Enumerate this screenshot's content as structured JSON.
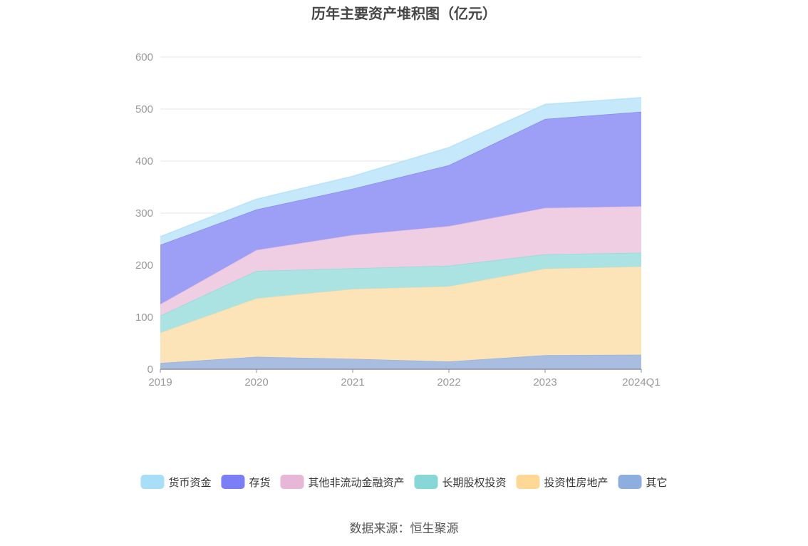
{
  "chart_data": {
    "type": "area",
    "stacked": true,
    "title": "历年主要资产堆积图（亿元）",
    "x": [
      "2019",
      "2020",
      "2021",
      "2022",
      "2023",
      "2024Q1"
    ],
    "ylim": [
      0,
      600
    ],
    "yticks": [
      "0",
      "100",
      "200",
      "300",
      "400",
      "500",
      "600"
    ],
    "grid": true,
    "legend_position": "bottom",
    "series": [
      {
        "name": "其它",
        "color": "#a9bde0",
        "legend_color": "#8eaee0",
        "values": [
          12,
          24,
          20,
          15,
          27,
          28
        ]
      },
      {
        "name": "投资性房地产",
        "color": "#fde4b8",
        "legend_color": "#ffd898",
        "values": [
          58,
          112,
          134,
          144,
          166,
          169
        ]
      },
      {
        "name": "长期股权投资",
        "color": "#abe2e2",
        "legend_color": "#88d7d7",
        "values": [
          33,
          53,
          40,
          40,
          28,
          27
        ]
      },
      {
        "name": "其他非流动金融资产",
        "color": "#efcde3",
        "legend_color": "#e8b6d6",
        "values": [
          22,
          40,
          64,
          76,
          89,
          89
        ]
      },
      {
        "name": "存货",
        "color": "#9d9ff7",
        "legend_color": "#7b7ef5",
        "values": [
          114,
          78,
          89,
          117,
          171,
          182
        ]
      },
      {
        "name": "货币资金",
        "color": "#c5e8fa",
        "legend_color": "#a9def8",
        "values": [
          16,
          20,
          24,
          34,
          28,
          27
        ]
      }
    ]
  },
  "legend_order": [
    "货币资金",
    "存货",
    "其他非流动金融资产",
    "长期股权投资",
    "投资性房地产",
    "其它"
  ],
  "source_text": "数据来源：恒生聚源"
}
